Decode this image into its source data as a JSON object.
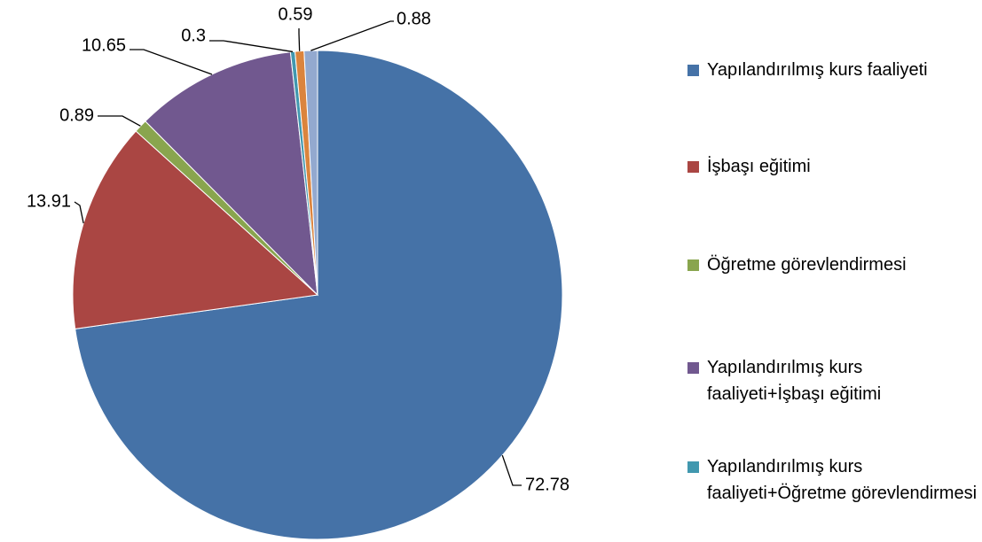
{
  "chart_data": {
    "type": "pie",
    "categories": [
      "Yapılandırılmış kurs faaliyeti",
      "İşbaşı eğitimi",
      "Öğretme görevlendirmesi",
      "Yapılandırılmış kurs faaliyeti+İşbaşı eğitimi",
      "Yapılandırılmış kurs faaliyeti+Öğretme görevlendirmesi",
      null,
      null
    ],
    "values": [
      72.78,
      13.91,
      0.89,
      10.65,
      0.3,
      0.59,
      0.88
    ],
    "colors": [
      "#4572a7",
      "#aa4643",
      "#89a54e",
      "#71588f",
      "#4198af",
      "#db843d",
      "#93a9cf"
    ],
    "legend": "right"
  }
}
